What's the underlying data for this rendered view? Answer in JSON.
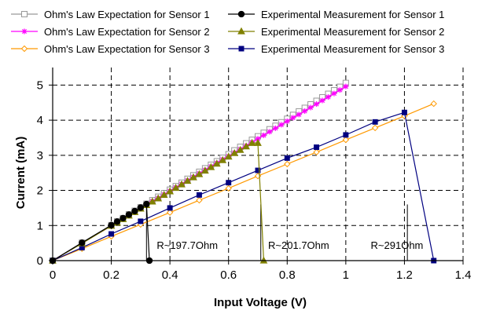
{
  "chart_data": {
    "type": "line",
    "xlabel": "Input Voltage (V)",
    "ylabel": "Current (mA)",
    "xlim": [
      0,
      1.4
    ],
    "ylim": [
      0,
      5.5
    ],
    "xticks": [
      0,
      0.2,
      0.4,
      0.6,
      0.8,
      1,
      1.2,
      1.4
    ],
    "xtick_labels": [
      "0",
      "0.2",
      "0.4",
      "0.6",
      "0.8",
      "1",
      "1.2",
      "1.4"
    ],
    "yticks": [
      0,
      1,
      2,
      3,
      4,
      5
    ],
    "ytick_labels": [
      "0",
      "1",
      "2",
      "3",
      "4",
      "5"
    ],
    "grid": true,
    "legend_placement": "top",
    "series": [
      {
        "name": "Ohm's Law Expectation for Sensor 1",
        "color": "#999999",
        "marker": "square-open",
        "x": [
          0,
          0.1,
          0.2,
          0.22,
          0.24,
          0.26,
          0.28,
          0.3,
          0.32,
          0.34,
          0.36,
          0.38,
          0.4,
          0.42,
          0.44,
          0.46,
          0.48,
          0.5,
          0.52,
          0.54,
          0.56,
          0.58,
          0.6,
          0.62,
          0.64,
          0.66,
          0.68,
          0.7,
          0.72,
          0.74,
          0.76,
          0.78,
          0.8,
          0.82,
          0.84,
          0.86,
          0.88,
          0.9,
          0.92,
          0.94,
          0.96,
          0.98,
          1.0
        ],
        "y": [
          0,
          0.51,
          1.01,
          1.12,
          1.21,
          1.32,
          1.42,
          1.52,
          1.62,
          1.72,
          1.82,
          1.92,
          2.02,
          2.12,
          2.22,
          2.33,
          2.43,
          2.53,
          2.63,
          2.73,
          2.83,
          2.93,
          3.03,
          3.14,
          3.24,
          3.34,
          3.44,
          3.54,
          3.64,
          3.74,
          3.84,
          3.94,
          4.04,
          4.15,
          4.25,
          4.35,
          4.45,
          4.55,
          4.65,
          4.75,
          4.85,
          4.95,
          5.06
        ]
      },
      {
        "name": "Ohm's Law Expectation for Sensor 2",
        "color": "#ff00ff",
        "marker": "asterisk",
        "x": [
          0,
          0.1,
          0.2,
          0.22,
          0.24,
          0.26,
          0.28,
          0.3,
          0.32,
          0.34,
          0.36,
          0.38,
          0.4,
          0.42,
          0.44,
          0.46,
          0.48,
          0.5,
          0.52,
          0.54,
          0.56,
          0.58,
          0.6,
          0.62,
          0.64,
          0.66,
          0.68,
          0.7,
          0.72,
          0.74,
          0.76,
          0.78,
          0.8,
          0.82,
          0.84,
          0.86,
          0.88,
          0.9,
          0.92,
          0.94,
          0.96,
          0.98,
          1.0
        ],
        "y": [
          0,
          0.5,
          0.99,
          1.09,
          1.19,
          1.29,
          1.39,
          1.49,
          1.59,
          1.69,
          1.78,
          1.88,
          1.98,
          2.08,
          2.18,
          2.28,
          2.38,
          2.48,
          2.58,
          2.68,
          2.78,
          2.88,
          2.97,
          3.07,
          3.17,
          3.27,
          3.37,
          3.47,
          3.57,
          3.67,
          3.77,
          3.87,
          3.97,
          4.07,
          4.16,
          4.26,
          4.36,
          4.46,
          4.56,
          4.66,
          4.76,
          4.86,
          4.96
        ]
      },
      {
        "name": "Ohm's Law Expectation for Sensor 3",
        "color": "#ff9900",
        "marker": "diamond-open",
        "x": [
          0,
          0.1,
          0.2,
          0.3,
          0.4,
          0.5,
          0.6,
          0.7,
          0.8,
          0.9,
          1.0,
          1.1,
          1.2,
          1.3
        ],
        "y": [
          0,
          0.34,
          0.69,
          1.03,
          1.37,
          1.72,
          2.06,
          2.41,
          2.75,
          3.09,
          3.44,
          3.78,
          4.12,
          4.47
        ]
      },
      {
        "name": "Experimental Measurement for Sensor 1",
        "color": "#000000",
        "marker": "circle",
        "x": [
          0,
          0.1,
          0.2,
          0.22,
          0.24,
          0.26,
          0.28,
          0.3,
          0.32,
          0.33
        ],
        "y": [
          0,
          0.51,
          1.01,
          1.11,
          1.21,
          1.31,
          1.41,
          1.51,
          1.61,
          0
        ]
      },
      {
        "name": "Experimental Measurement for Sensor 2",
        "color": "#808000",
        "marker": "triangle",
        "x": [
          0,
          0.1,
          0.2,
          0.22,
          0.24,
          0.26,
          0.28,
          0.3,
          0.32,
          0.34,
          0.36,
          0.38,
          0.4,
          0.42,
          0.44,
          0.46,
          0.48,
          0.5,
          0.52,
          0.54,
          0.56,
          0.58,
          0.6,
          0.62,
          0.64,
          0.66,
          0.68,
          0.7,
          0.72
        ],
        "y": [
          0,
          0.49,
          0.99,
          1.08,
          1.18,
          1.28,
          1.38,
          1.48,
          1.58,
          1.68,
          1.77,
          1.87,
          1.97,
          2.07,
          2.17,
          2.27,
          2.37,
          2.46,
          2.56,
          2.66,
          2.76,
          2.86,
          2.96,
          3.06,
          3.15,
          3.25,
          3.35,
          3.35,
          0
        ]
      },
      {
        "name": "Experimental Measurement for Sensor 3",
        "color": "#000080",
        "marker": "square",
        "x": [
          0,
          0.1,
          0.2,
          0.3,
          0.4,
          0.5,
          0.6,
          0.7,
          0.8,
          0.9,
          1.0,
          1.1,
          1.2,
          1.3
        ],
        "y": [
          0,
          0.37,
          0.76,
          1.12,
          1.5,
          1.87,
          2.22,
          2.57,
          2.92,
          3.23,
          3.58,
          3.95,
          4.22,
          0
        ]
      }
    ],
    "annotations": [
      {
        "text": "R~197.7Ohm",
        "x": 0.355,
        "y": 0.45,
        "line_x": 0.32
      },
      {
        "text": "R~201.7Ohm",
        "x": 0.735,
        "y": 0.45,
        "line_x": 0.71
      },
      {
        "text": "R~291Ohm",
        "x": 1.085,
        "y": 0.45,
        "line_x": 1.21
      }
    ]
  }
}
